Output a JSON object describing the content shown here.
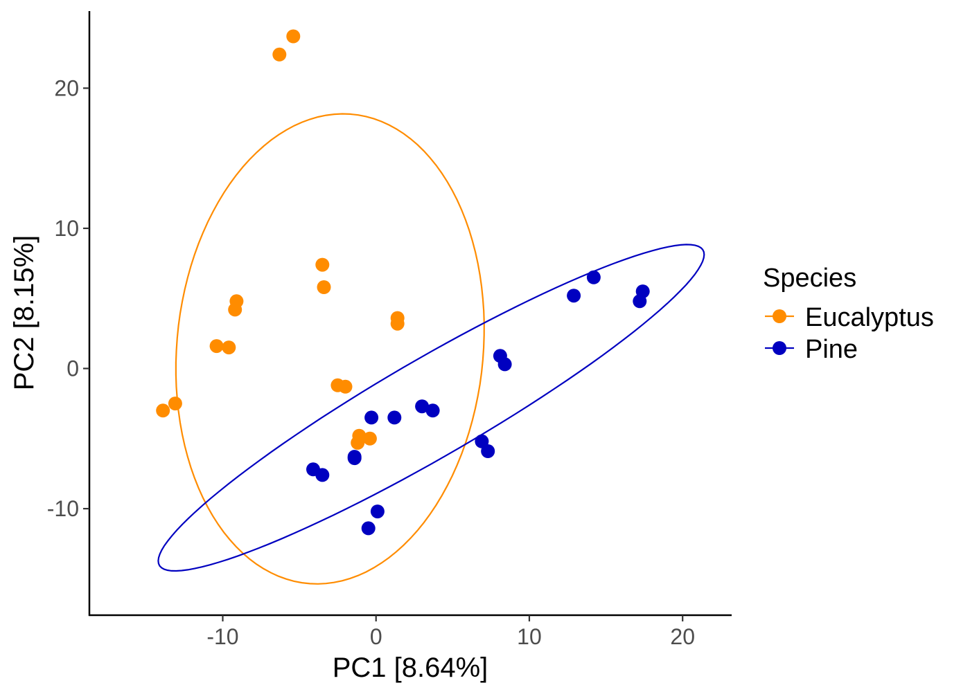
{
  "chart_data": {
    "type": "scatter",
    "title": "",
    "xlabel": "PC1 [8.64%]",
    "ylabel": "PC2 [8.15%]",
    "xlim": [
      -18.7,
      23.2
    ],
    "ylim": [
      -17.6,
      25.5
    ],
    "xticks": [
      -10,
      0,
      10,
      20
    ],
    "yticks": [
      -10,
      0,
      10,
      20
    ],
    "xtick_labels": [
      "-10",
      "0",
      "10",
      "20"
    ],
    "ytick_labels": [
      "-10",
      "0",
      "10",
      "20"
    ],
    "grid": false,
    "legend": {
      "title": "Species",
      "placement": "right",
      "entries": [
        "Eucalyptus",
        "Pine"
      ]
    },
    "series": [
      {
        "name": "Eucalyptus",
        "color": "#ff8c00",
        "points": [
          {
            "x": -5.4,
            "y": 23.7
          },
          {
            "x": -6.3,
            "y": 22.4
          },
          {
            "x": -3.5,
            "y": 7.4
          },
          {
            "x": -3.4,
            "y": 5.8
          },
          {
            "x": -9.1,
            "y": 4.8
          },
          {
            "x": -9.2,
            "y": 4.2
          },
          {
            "x": 1.4,
            "y": 3.6
          },
          {
            "x": 1.4,
            "y": 3.2
          },
          {
            "x": -10.4,
            "y": 1.6
          },
          {
            "x": -9.6,
            "y": 1.5
          },
          {
            "x": -2.5,
            "y": -1.2
          },
          {
            "x": -2.0,
            "y": -1.3
          },
          {
            "x": -13.1,
            "y": -2.5
          },
          {
            "x": -13.9,
            "y": -3.0
          },
          {
            "x": -1.1,
            "y": -4.8
          },
          {
            "x": -0.4,
            "y": -5.0
          },
          {
            "x": -1.2,
            "y": -5.3
          }
        ]
      },
      {
        "name": "Pine",
        "color": "#0000c0",
        "points": [
          {
            "x": 14.2,
            "y": 6.5
          },
          {
            "x": 17.4,
            "y": 5.5
          },
          {
            "x": 12.9,
            "y": 5.2
          },
          {
            "x": 17.2,
            "y": 4.8
          },
          {
            "x": 8.1,
            "y": 0.9
          },
          {
            "x": 8.4,
            "y": 0.3
          },
          {
            "x": 3.0,
            "y": -2.7
          },
          {
            "x": 3.7,
            "y": -3.0
          },
          {
            "x": -0.3,
            "y": -3.5
          },
          {
            "x": 1.2,
            "y": -3.5
          },
          {
            "x": 6.9,
            "y": -5.2
          },
          {
            "x": 7.3,
            "y": -5.9
          },
          {
            "x": -1.4,
            "y": -6.3
          },
          {
            "x": -1.4,
            "y": -6.4
          },
          {
            "x": -4.1,
            "y": -7.2
          },
          {
            "x": -3.5,
            "y": -7.6
          },
          {
            "x": 0.1,
            "y": -10.2
          },
          {
            "x": -0.5,
            "y": -11.4
          }
        ]
      }
    ],
    "ellipses": [
      {
        "series": "Eucalyptus",
        "color": "#ff8c00",
        "cx": -3.0,
        "cy": 1.4,
        "rx": 10.0,
        "ry": 16.8,
        "angle_deg": -4.5
      },
      {
        "series": "Pine",
        "color": "#0000c0",
        "cx": 3.6,
        "cy": -2.8,
        "rx": 21.0,
        "ry": 3.4,
        "angle_deg": 32.5
      }
    ]
  }
}
